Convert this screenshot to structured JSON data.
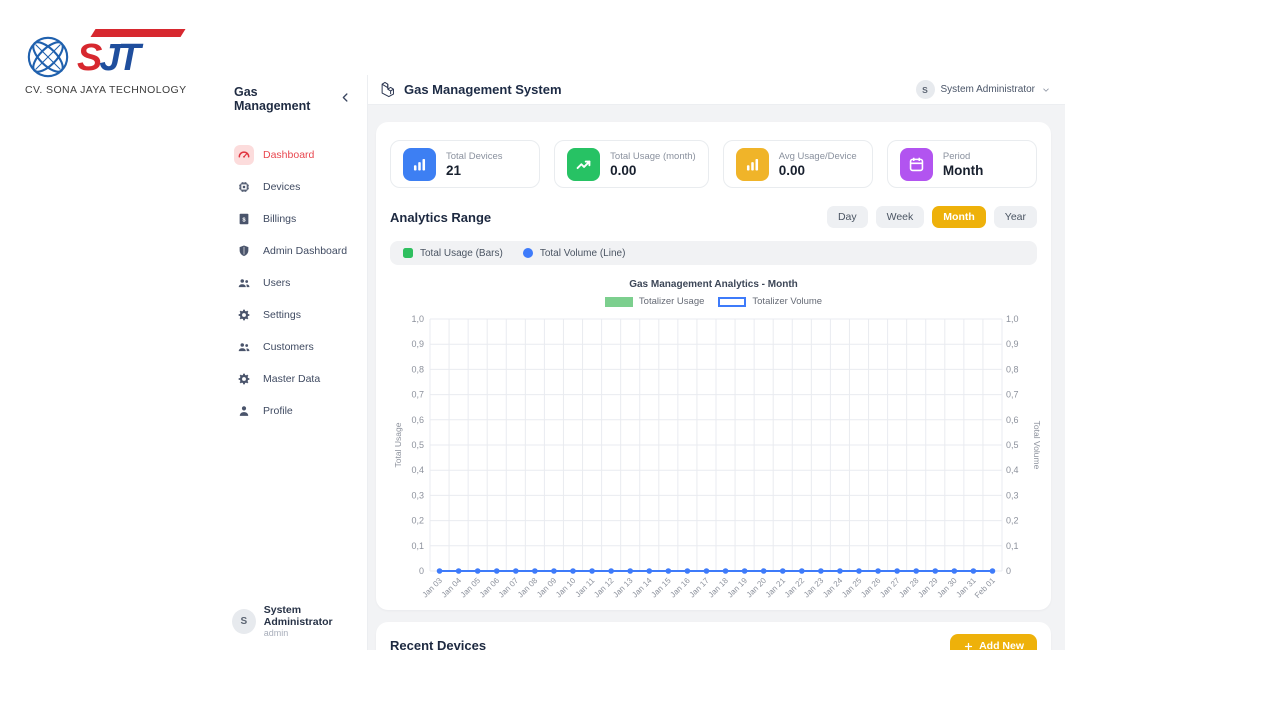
{
  "brand": {
    "company": "CV. SONA JAYA TECHNOLOGY",
    "letters": {
      "s": "S",
      "j": "J",
      "t": "T"
    }
  },
  "sidebar": {
    "title": "Gas Management",
    "items": [
      {
        "label": "Dashboard",
        "icon": "gauge",
        "active": true
      },
      {
        "label": "Devices",
        "icon": "chip",
        "active": false
      },
      {
        "label": "Billings",
        "icon": "invoice",
        "active": false
      },
      {
        "label": "Admin Dashboard",
        "icon": "shield",
        "active": false
      },
      {
        "label": "Users",
        "icon": "users",
        "active": false
      },
      {
        "label": "Settings",
        "icon": "gear",
        "active": false
      },
      {
        "label": "Customers",
        "icon": "users",
        "active": false
      },
      {
        "label": "Master Data",
        "icon": "gear",
        "active": false
      },
      {
        "label": "Profile",
        "icon": "person",
        "active": false
      }
    ],
    "user": {
      "initial": "S",
      "name": "System Administrator",
      "role": "admin"
    }
  },
  "header": {
    "title": "Gas Management System",
    "user_initial": "S",
    "user_name": "System Administrator"
  },
  "stats": [
    {
      "label": "Total Devices",
      "value": "21",
      "color": "#3d7ff3",
      "icon": "chart-bar"
    },
    {
      "label": "Total Usage (month)",
      "value": "0.00",
      "color": "#27c264",
      "icon": "trend-up"
    },
    {
      "label": "Avg Usage/Device",
      "value": "0.00",
      "color": "#f0b429",
      "icon": "chart-bar"
    },
    {
      "label": "Period",
      "value": "Month",
      "color": "#b254f0",
      "icon": "calendar"
    }
  ],
  "analytics": {
    "heading": "Analytics Range",
    "ranges": [
      {
        "label": "Day",
        "active": false
      },
      {
        "label": "Week",
        "active": false
      },
      {
        "label": "Month",
        "active": true
      },
      {
        "label": "Year",
        "active": false
      }
    ],
    "legend": [
      {
        "label": "Total Usage (Bars)",
        "color": "#2fbf5f",
        "shape": "square"
      },
      {
        "label": "Total Volume (Line)",
        "color": "#3e7bfa",
        "shape": "circle"
      }
    ]
  },
  "chart_data": {
    "type": "line",
    "title": "Gas Management Analytics - Month",
    "categories": [
      "Jan 03",
      "Jan 04",
      "Jan 05",
      "Jan 06",
      "Jan 07",
      "Jan 08",
      "Jan 09",
      "Jan 10",
      "Jan 11",
      "Jan 12",
      "Jan 13",
      "Jan 14",
      "Jan 15",
      "Jan 16",
      "Jan 17",
      "Jan 18",
      "Jan 19",
      "Jan 20",
      "Jan 21",
      "Jan 22",
      "Jan 23",
      "Jan 24",
      "Jan 25",
      "Jan 26",
      "Jan 27",
      "Jan 28",
      "Jan 29",
      "Jan 30",
      "Jan 31",
      "Feb 01"
    ],
    "series": [
      {
        "name": "Totalizer Usage",
        "type": "bar",
        "color": "#7ccf8e",
        "legend_fill": "#7ccf8e",
        "legend_border": "#7ccf8e",
        "values": [
          0,
          0,
          0,
          0,
          0,
          0,
          0,
          0,
          0,
          0,
          0,
          0,
          0,
          0,
          0,
          0,
          0,
          0,
          0,
          0,
          0,
          0,
          0,
          0,
          0,
          0,
          0,
          0,
          0,
          0
        ]
      },
      {
        "name": "Totalizer Volume",
        "type": "line",
        "color": "#3e7bfa",
        "legend_fill": "#ffffff",
        "legend_border": "#3e7bfa",
        "values": [
          0,
          0,
          0,
          0,
          0,
          0,
          0,
          0,
          0,
          0,
          0,
          0,
          0,
          0,
          0,
          0,
          0,
          0,
          0,
          0,
          0,
          0,
          0,
          0,
          0,
          0,
          0,
          0,
          0,
          0
        ]
      }
    ],
    "ylim": [
      0,
      1
    ],
    "y_tick_labels": [
      "1,0",
      "0,9",
      "0,8",
      "0,7",
      "0,6",
      "0,5",
      "0,4",
      "0,3",
      "0,2",
      "0,1",
      "0"
    ],
    "y_left_label": "Total Usage",
    "y_right_label": "Total Volume",
    "grid": true,
    "legend_position": "top"
  },
  "recent": {
    "heading": "Recent Devices",
    "add_label": "Add New"
  }
}
